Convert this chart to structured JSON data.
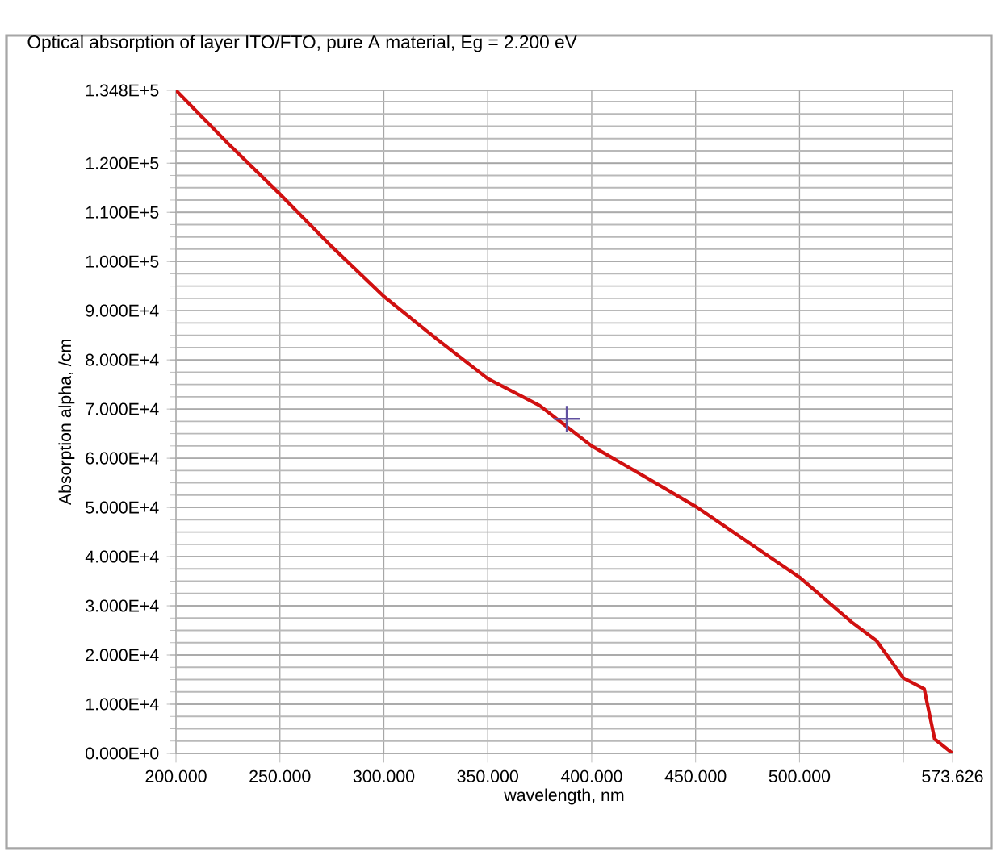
{
  "chart_data": {
    "type": "line",
    "title": "Optical absorption of layer ITO/FTO, pure A material, Eg =  2.200 eV",
    "xlabel": "wavelength, nm",
    "ylabel": "Absorption alpha, /cm",
    "xlim": [
      200,
      573.626
    ],
    "ylim": [
      0,
      134800
    ],
    "xticks": [
      {
        "value": 200,
        "label": "200.000"
      },
      {
        "value": 250,
        "label": "250.000"
      },
      {
        "value": 300,
        "label": "300.000"
      },
      {
        "value": 350,
        "label": "350.000"
      },
      {
        "value": 400,
        "label": "400.000"
      },
      {
        "value": 450,
        "label": "450.000"
      },
      {
        "value": 500,
        "label": "500.000"
      },
      {
        "value": 550,
        "label": null
      },
      {
        "value": 573.626,
        "label": "573.626"
      }
    ],
    "yticks": [
      {
        "value": 0,
        "label": "0.000E+0"
      },
      {
        "value": 10000,
        "label": "1.000E+4"
      },
      {
        "value": 20000,
        "label": "2.000E+4"
      },
      {
        "value": 30000,
        "label": "3.000E+4"
      },
      {
        "value": 40000,
        "label": "4.000E+4"
      },
      {
        "value": 50000,
        "label": "5.000E+4"
      },
      {
        "value": 60000,
        "label": "6.000E+4"
      },
      {
        "value": 70000,
        "label": "7.000E+4"
      },
      {
        "value": 80000,
        "label": "8.000E+4"
      },
      {
        "value": 90000,
        "label": "9.000E+4"
      },
      {
        "value": 100000,
        "label": "1.000E+5"
      },
      {
        "value": 110000,
        "label": "1.100E+5"
      },
      {
        "value": 120000,
        "label": "1.200E+5"
      },
      {
        "value": 134800,
        "label": "1.348E+5"
      }
    ],
    "grid": true,
    "series": [
      {
        "color": "#d01010",
        "marker": "none",
        "line_style": "solid",
        "x": [
          200,
          225,
          250,
          275,
          300,
          325,
          350,
          375,
          400,
          425,
          450,
          475,
          500,
          525,
          537,
          550,
          560,
          565,
          573.626
        ],
        "values": [
          134800,
          124000,
          113700,
          103000,
          92900,
          84400,
          76200,
          70700,
          62500,
          56400,
          50200,
          43000,
          35800,
          26700,
          22900,
          15300,
          13100,
          2900,
          0
        ]
      },
      {
        "type": "scatter",
        "color": "#6050a0",
        "marker": "cross",
        "x": [
          388
        ],
        "values": [
          68000
        ]
      }
    ]
  }
}
